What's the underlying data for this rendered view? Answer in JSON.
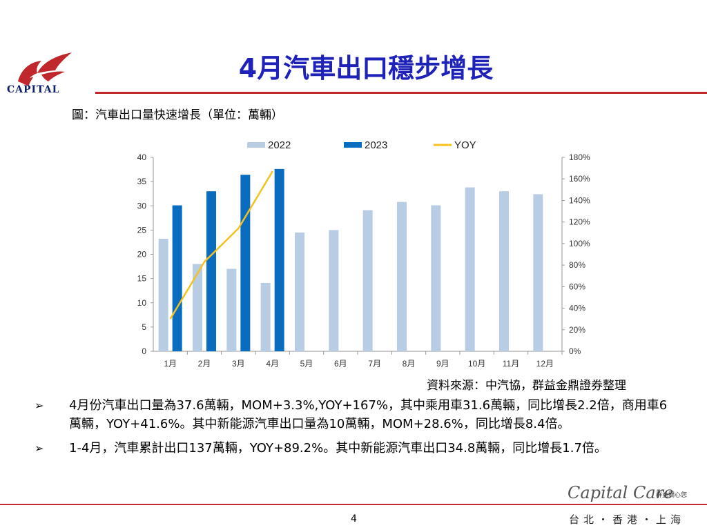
{
  "header": {
    "logo_text": "CAPITAL",
    "title": "4月汽車出口穩步增長"
  },
  "chart_caption": "圖：汽車出口量快速增長（單位：萬輛）",
  "chart_data": {
    "type": "bar",
    "categories": [
      "1月",
      "2月",
      "3月",
      "4月",
      "5月",
      "6月",
      "7月",
      "8月",
      "9月",
      "10月",
      "11月",
      "12月"
    ],
    "series": [
      {
        "name": "2022",
        "kind": "bar",
        "axis": "left",
        "color": "#b8cce4",
        "values": [
          23.2,
          18.0,
          17.0,
          14.1,
          24.5,
          25.0,
          29.1,
          30.8,
          30.1,
          33.8,
          33.0,
          32.4
        ]
      },
      {
        "name": "2023",
        "kind": "bar",
        "axis": "left",
        "color": "#0a6cbf",
        "values": [
          30.1,
          33.0,
          36.4,
          37.6,
          null,
          null,
          null,
          null,
          null,
          null,
          null,
          null
        ]
      },
      {
        "name": "YOY",
        "kind": "line",
        "axis": "right",
        "color": "#f5c21c",
        "values": [
          30,
          83,
          114,
          167,
          null,
          null,
          null,
          null,
          null,
          null,
          null,
          null
        ]
      }
    ],
    "ylim": [
      0,
      40
    ],
    "yticks": [
      "0",
      "5",
      "10",
      "15",
      "20",
      "25",
      "30",
      "35",
      "40"
    ],
    "y2lim": [
      0,
      180
    ],
    "y2ticks": [
      "0%",
      "20%",
      "40%",
      "60%",
      "80%",
      "100%",
      "120%",
      "140%",
      "160%",
      "180%"
    ],
    "title": "",
    "xlabel": "",
    "ylabel": "",
    "legend": "top",
    "grid": false
  },
  "source": "資料來源：中汽協，群益金鼎證券整理",
  "bullets": [
    {
      "marker": "➢",
      "text": "4月份汽車出口量為37.6萬輛，MOM+3.3%,YOY+167%，其中乘用車31.6萬輛，同比增長2.2倍，商用車6萬輛，YOY+41.6%。其中新能源汽車出口量為10萬輛，MOM+28.6%，同比增長8.4倍。"
    },
    {
      "marker": "➢",
      "text": "1-4月，汽車累計出口137萬輛，YOY+89.2%。其中新能源汽車出口34.8萬輛，同比增長1.7倍。"
    }
  ],
  "footer": {
    "page_number": "4",
    "brand_script": "Capital Care",
    "brand_tag": "群益關心您",
    "cities": "台北・香港・上海"
  },
  "colors": {
    "title": "#1f22b8",
    "rule": "#c0282d",
    "logo": "#c0282d"
  }
}
